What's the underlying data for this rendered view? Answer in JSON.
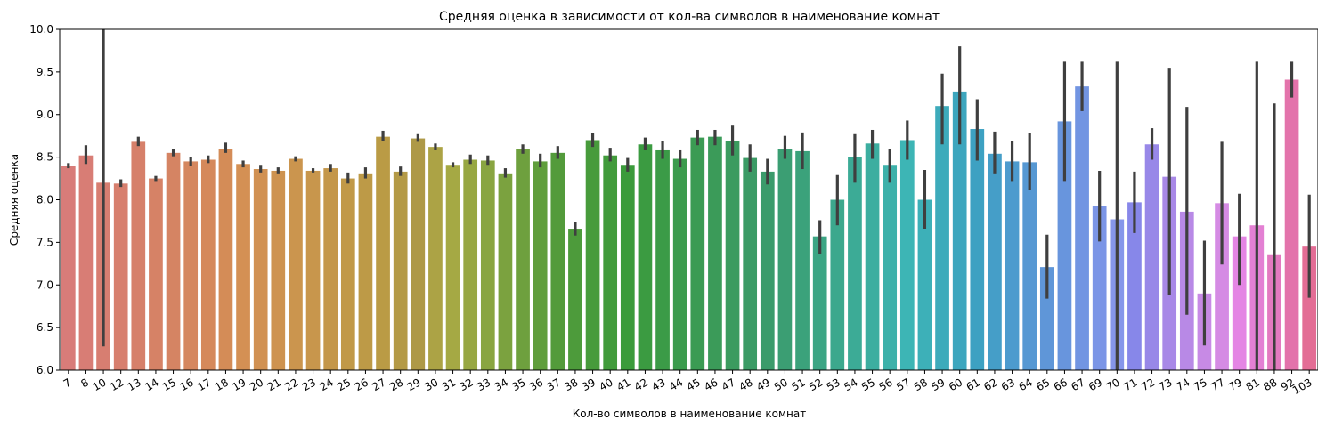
{
  "chart_data": {
    "type": "bar",
    "title": "Средняя оценка в зависимости от кол-ва символов в наименование комнат",
    "xlabel": "Кол-во символов в наименование комнат",
    "ylabel": "Средняя оценка",
    "ylim": [
      6.0,
      10.0
    ],
    "yticks": [
      "6.0",
      "6.5",
      "7.0",
      "7.5",
      "8.0",
      "8.5",
      "9.0",
      "9.5",
      "10.0"
    ],
    "grid": false,
    "legend": "none",
    "categories": [
      "7",
      "8",
      "10",
      "12",
      "13",
      "14",
      "15",
      "16",
      "17",
      "18",
      "19",
      "20",
      "21",
      "22",
      "23",
      "24",
      "25",
      "26",
      "27",
      "28",
      "29",
      "30",
      "31",
      "32",
      "33",
      "34",
      "35",
      "36",
      "37",
      "38",
      "39",
      "40",
      "41",
      "42",
      "43",
      "44",
      "45",
      "46",
      "47",
      "48",
      "49",
      "50",
      "51",
      "52",
      "53",
      "54",
      "55",
      "56",
      "57",
      "58",
      "59",
      "60",
      "61",
      "62",
      "63",
      "64",
      "65",
      "66",
      "67",
      "69",
      "70",
      "71",
      "72",
      "73",
      "74",
      "75",
      "77",
      "79",
      "81",
      "88",
      "92",
      "103"
    ],
    "values": [
      8.4,
      8.52,
      8.2,
      8.19,
      8.68,
      8.25,
      8.55,
      8.45,
      8.47,
      8.6,
      8.42,
      8.36,
      8.34,
      8.48,
      8.34,
      8.37,
      8.25,
      8.31,
      8.74,
      8.33,
      8.72,
      8.62,
      8.41,
      8.47,
      8.46,
      8.31,
      8.59,
      8.45,
      8.55,
      7.66,
      8.7,
      8.52,
      8.41,
      8.65,
      8.58,
      8.48,
      8.73,
      8.74,
      8.69,
      8.49,
      8.33,
      8.6,
      8.57,
      7.57,
      8.0,
      8.5,
      8.66,
      8.41,
      8.7,
      8.0,
      9.1,
      9.27,
      8.83,
      8.54,
      8.45,
      8.44,
      7.21,
      8.92,
      9.33,
      7.93,
      7.77,
      7.97,
      8.65,
      8.27,
      7.86,
      6.9,
      7.96,
      7.57,
      7.7,
      7.35,
      9.41,
      7.45
    ],
    "ci_low": [
      8.37,
      8.42,
      6.28,
      8.15,
      8.63,
      8.22,
      8.51,
      8.4,
      8.43,
      8.55,
      8.38,
      8.32,
      8.31,
      8.45,
      8.32,
      8.33,
      8.19,
      8.25,
      8.69,
      8.28,
      8.68,
      8.58,
      8.38,
      8.42,
      8.41,
      8.26,
      8.54,
      8.38,
      8.48,
      7.58,
      8.62,
      8.45,
      8.33,
      8.58,
      8.48,
      8.38,
      8.64,
      8.64,
      8.52,
      8.33,
      8.18,
      8.48,
      8.36,
      7.36,
      7.7,
      8.2,
      8.48,
      8.2,
      8.47,
      7.66,
      8.65,
      8.65,
      8.46,
      8.31,
      8.22,
      8.12,
      6.84,
      8.22,
      9.04,
      7.51,
      6.0,
      7.61,
      8.47,
      6.88,
      6.65,
      6.29,
      7.24,
      7.0,
      6.0,
      6.0,
      9.2,
      6.85
    ],
    "ci_high": [
      8.43,
      8.64,
      10.0,
      8.24,
      8.74,
      8.28,
      8.6,
      8.5,
      8.52,
      8.67,
      8.46,
      8.41,
      8.38,
      8.51,
      8.37,
      8.42,
      8.32,
      8.38,
      8.81,
      8.39,
      8.77,
      8.66,
      8.44,
      8.53,
      8.52,
      8.37,
      8.65,
      8.54,
      8.63,
      7.74,
      8.78,
      8.61,
      8.49,
      8.73,
      8.69,
      8.58,
      8.82,
      8.82,
      8.87,
      8.65,
      8.48,
      8.75,
      8.79,
      7.76,
      8.29,
      8.77,
      8.82,
      8.6,
      8.93,
      8.35,
      9.48,
      9.8,
      9.18,
      8.8,
      8.69,
      8.78,
      7.59,
      9.62,
      9.62,
      8.34,
      9.62,
      8.33,
      8.84,
      9.55,
      9.09,
      7.52,
      8.68,
      8.07,
      9.62,
      9.13,
      9.62,
      8.06
    ]
  }
}
